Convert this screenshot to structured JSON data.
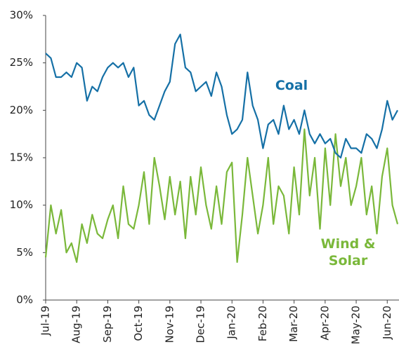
{
  "chart_data": {
    "type": "line",
    "categories": [
      "Jul-19",
      null,
      null,
      null,
      null,
      null,
      "Aug-19",
      null,
      null,
      null,
      null,
      null,
      "Sep-19",
      null,
      null,
      null,
      null,
      null,
      "Oct-19",
      null,
      null,
      null,
      null,
      null,
      "Nov-19",
      null,
      null,
      null,
      null,
      null,
      "Dec-19",
      null,
      null,
      null,
      null,
      null,
      "Jan-20",
      null,
      null,
      null,
      null,
      null,
      "Feb-20",
      null,
      null,
      null,
      null,
      null,
      "Mar-20",
      null,
      null,
      null,
      null,
      null,
      "Apr-20",
      null,
      null,
      null,
      null,
      null,
      "May-20",
      null,
      null,
      null,
      null,
      null,
      "Jun-20",
      null,
      null
    ],
    "series": [
      {
        "name": "Coal",
        "color": "#1570a6",
        "values": [
          26,
          25.5,
          23.5,
          23.5,
          24,
          23.5,
          25,
          24.5,
          21,
          22.5,
          22,
          23.5,
          24.5,
          25,
          24.5,
          25,
          23.5,
          24.5,
          20.5,
          21,
          19.5,
          19,
          20.5,
          22,
          23,
          27,
          28,
          24.5,
          24,
          22,
          22.5,
          23,
          21.5,
          24,
          22.5,
          19.5,
          17.5,
          18,
          19,
          24,
          20.5,
          19,
          16,
          18.5,
          19,
          17.5,
          20.5,
          18,
          19,
          17.5,
          20,
          17.5,
          16.5,
          17.5,
          16.5,
          17,
          15.5,
          15,
          17,
          16,
          16,
          15.5,
          17.5,
          17,
          16,
          18,
          21,
          19,
          20
        ]
      },
      {
        "name": "Wind & Solar",
        "color": "#7ab83a",
        "values": [
          4.5,
          10,
          7,
          9.5,
          5,
          6,
          4,
          8,
          6,
          9,
          7,
          6.5,
          8.5,
          10,
          6.5,
          12,
          8,
          7.5,
          10,
          13.5,
          8,
          15,
          12,
          8.5,
          13,
          9,
          12.5,
          6.5,
          13,
          9,
          14,
          10,
          7.5,
          12,
          8,
          13.5,
          14.5,
          4,
          9,
          15,
          11,
          7,
          10,
          15,
          8,
          12,
          11,
          7,
          14,
          9,
          18,
          11,
          15,
          7.5,
          16,
          10,
          17.5,
          12,
          15,
          10,
          12,
          15,
          9,
          12,
          7,
          13,
          16,
          10,
          8
        ]
      }
    ],
    "ylim": [
      0,
      30
    ],
    "yticks": [
      {
        "value": 0,
        "label": "0%"
      },
      {
        "value": 5,
        "label": "5%"
      },
      {
        "value": 10,
        "label": "10%"
      },
      {
        "value": 15,
        "label": "15%"
      },
      {
        "value": 20,
        "label": "20%"
      },
      {
        "value": 25,
        "label": "25%"
      },
      {
        "value": 30,
        "label": "30%"
      }
    ]
  }
}
